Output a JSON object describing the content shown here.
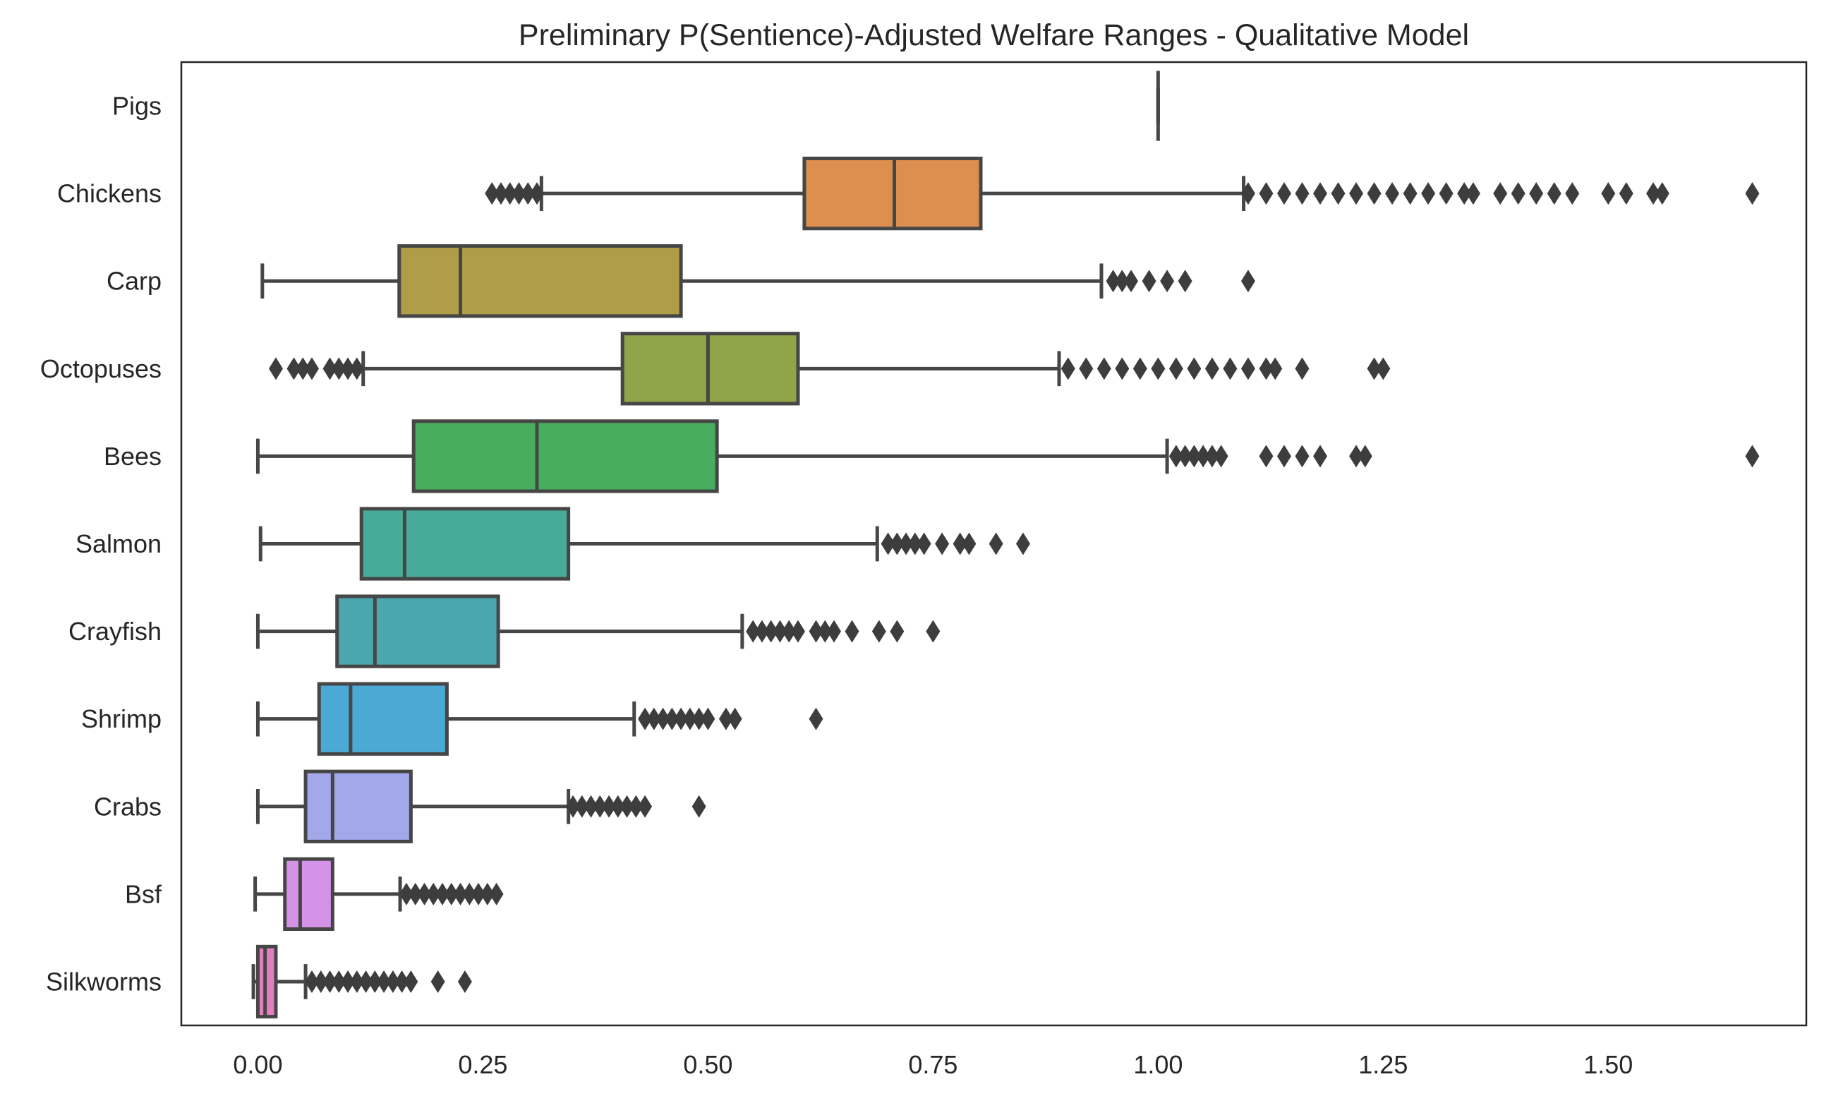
{
  "chart_data": {
    "type": "boxplot",
    "orientation": "horizontal",
    "title": "Preliminary P(Sentience)-Adjusted Welfare Ranges - Qualitative Model",
    "xlabel": "",
    "ylabel": "",
    "xlim": [
      -0.085,
      1.72
    ],
    "xticks": [
      0.0,
      0.25,
      0.5,
      0.75,
      1.0,
      1.25,
      1.5
    ],
    "xtick_labels": [
      "0.00",
      "0.25",
      "0.50",
      "0.75",
      "1.00",
      "1.25",
      "1.50"
    ],
    "grid": false,
    "legend": "none",
    "series": [
      {
        "name": "Pigs",
        "color": "#4d4d4d",
        "min": 1.0,
        "q1": 1.0,
        "median": 1.0,
        "q3": 1.0,
        "max": 1.0,
        "outliers": []
      },
      {
        "name": "Chickens",
        "color": "#dd8f4f",
        "min": 0.315,
        "q1": 0.607,
        "median": 0.707,
        "q3": 0.803,
        "max": 1.095,
        "outliers": [
          0.26,
          0.27,
          0.28,
          0.29,
          0.3,
          0.31,
          1.1,
          1.12,
          1.14,
          1.16,
          1.18,
          1.2,
          1.22,
          1.24,
          1.26,
          1.28,
          1.3,
          1.32,
          1.34,
          1.35,
          1.38,
          1.4,
          1.42,
          1.44,
          1.46,
          1.5,
          1.52,
          1.55,
          1.56,
          1.66
        ]
      },
      {
        "name": "Carp",
        "color": "#b09d48",
        "min": 0.005,
        "q1": 0.157,
        "median": 0.225,
        "q3": 0.47,
        "max": 0.937,
        "outliers": [
          0.95,
          0.96,
          0.97,
          0.99,
          1.01,
          1.03,
          1.1
        ]
      },
      {
        "name": "Octopuses",
        "color": "#8fa548",
        "min": 0.117,
        "q1": 0.405,
        "median": 0.5,
        "q3": 0.6,
        "max": 0.89,
        "outliers": [
          0.02,
          0.04,
          0.05,
          0.06,
          0.08,
          0.09,
          0.1,
          0.11,
          0.9,
          0.92,
          0.94,
          0.96,
          0.98,
          1.0,
          1.02,
          1.04,
          1.06,
          1.08,
          1.1,
          1.12,
          1.13,
          1.16,
          1.24,
          1.25
        ]
      },
      {
        "name": "Bees",
        "color": "#48ad5f",
        "min": 0.0,
        "q1": 0.173,
        "median": 0.31,
        "q3": 0.51,
        "max": 1.01,
        "outliers": [
          1.02,
          1.03,
          1.04,
          1.05,
          1.06,
          1.07,
          1.12,
          1.14,
          1.16,
          1.18,
          1.22,
          1.23,
          1.66
        ]
      },
      {
        "name": "Salmon",
        "color": "#48aa98",
        "min": 0.003,
        "q1": 0.115,
        "median": 0.163,
        "q3": 0.345,
        "max": 0.688,
        "outliers": [
          0.7,
          0.71,
          0.72,
          0.73,
          0.74,
          0.76,
          0.78,
          0.79,
          0.82,
          0.85
        ]
      },
      {
        "name": "Crayfish",
        "color": "#49a7ad",
        "min": 0.0,
        "q1": 0.088,
        "median": 0.13,
        "q3": 0.267,
        "max": 0.538,
        "outliers": [
          0.55,
          0.56,
          0.57,
          0.58,
          0.59,
          0.6,
          0.62,
          0.63,
          0.64,
          0.66,
          0.69,
          0.71,
          0.75
        ]
      },
      {
        "name": "Shrimp",
        "color": "#4aaad5",
        "min": 0.0,
        "q1": 0.068,
        "median": 0.103,
        "q3": 0.21,
        "max": 0.418,
        "outliers": [
          0.43,
          0.44,
          0.45,
          0.46,
          0.47,
          0.48,
          0.49,
          0.5,
          0.52,
          0.53,
          0.62
        ]
      },
      {
        "name": "Crabs",
        "color": "#a3a8eb",
        "min": 0.0,
        "q1": 0.053,
        "median": 0.083,
        "q3": 0.17,
        "max": 0.345,
        "outliers": [
          0.35,
          0.36,
          0.37,
          0.38,
          0.39,
          0.4,
          0.41,
          0.42,
          0.43,
          0.49
        ]
      },
      {
        "name": "Bsf",
        "color": "#d593e8",
        "min": -0.003,
        "q1": 0.03,
        "median": 0.047,
        "q3": 0.083,
        "max": 0.158,
        "outliers": [
          0.165,
          0.175,
          0.185,
          0.195,
          0.205,
          0.215,
          0.225,
          0.235,
          0.245,
          0.255,
          0.265
        ]
      },
      {
        "name": "Silkworms",
        "color": "#e37fc0",
        "min": -0.005,
        "q1": 0.0,
        "median": 0.008,
        "q3": 0.02,
        "max": 0.053,
        "outliers": [
          0.06,
          0.07,
          0.08,
          0.09,
          0.1,
          0.11,
          0.12,
          0.13,
          0.14,
          0.15,
          0.16,
          0.17,
          0.2,
          0.23
        ]
      }
    ]
  }
}
